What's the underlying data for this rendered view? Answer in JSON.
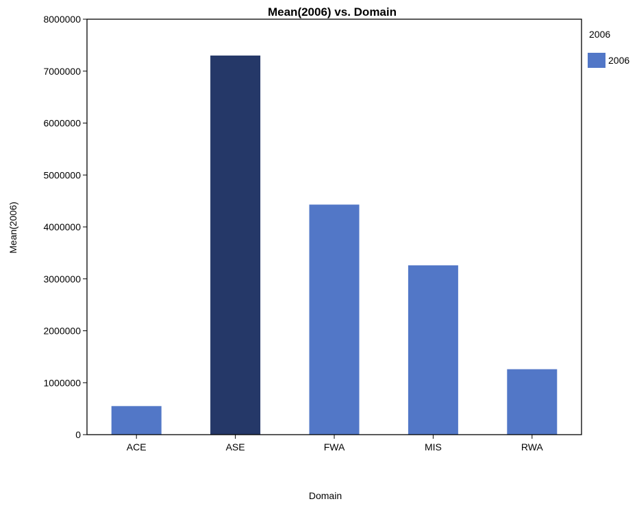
{
  "chart_data": {
    "type": "bar",
    "title": "Mean(2006) vs. Domain",
    "xlabel": "Domain",
    "ylabel": "Mean(2006)",
    "categories": [
      "ACE",
      "ASE",
      "FWA",
      "MIS",
      "RWA"
    ],
    "series": [
      {
        "name": "2006",
        "values": [
          550000,
          7300000,
          4430000,
          3260000,
          1260000
        ]
      }
    ],
    "ylim": [
      0,
      8000000
    ],
    "yticks": [
      "0",
      "1000000",
      "2000000",
      "3000000",
      "4000000",
      "5000000",
      "6000000",
      "7000000",
      "8000000"
    ],
    "grid": false,
    "legend": {
      "title": "2006",
      "position": "top-right",
      "entries": [
        "2006"
      ]
    },
    "colors": {
      "bar": "#5277c7",
      "highlight_bar": "#253868",
      "highlight_category": "ASE",
      "axis": "#000000"
    }
  }
}
